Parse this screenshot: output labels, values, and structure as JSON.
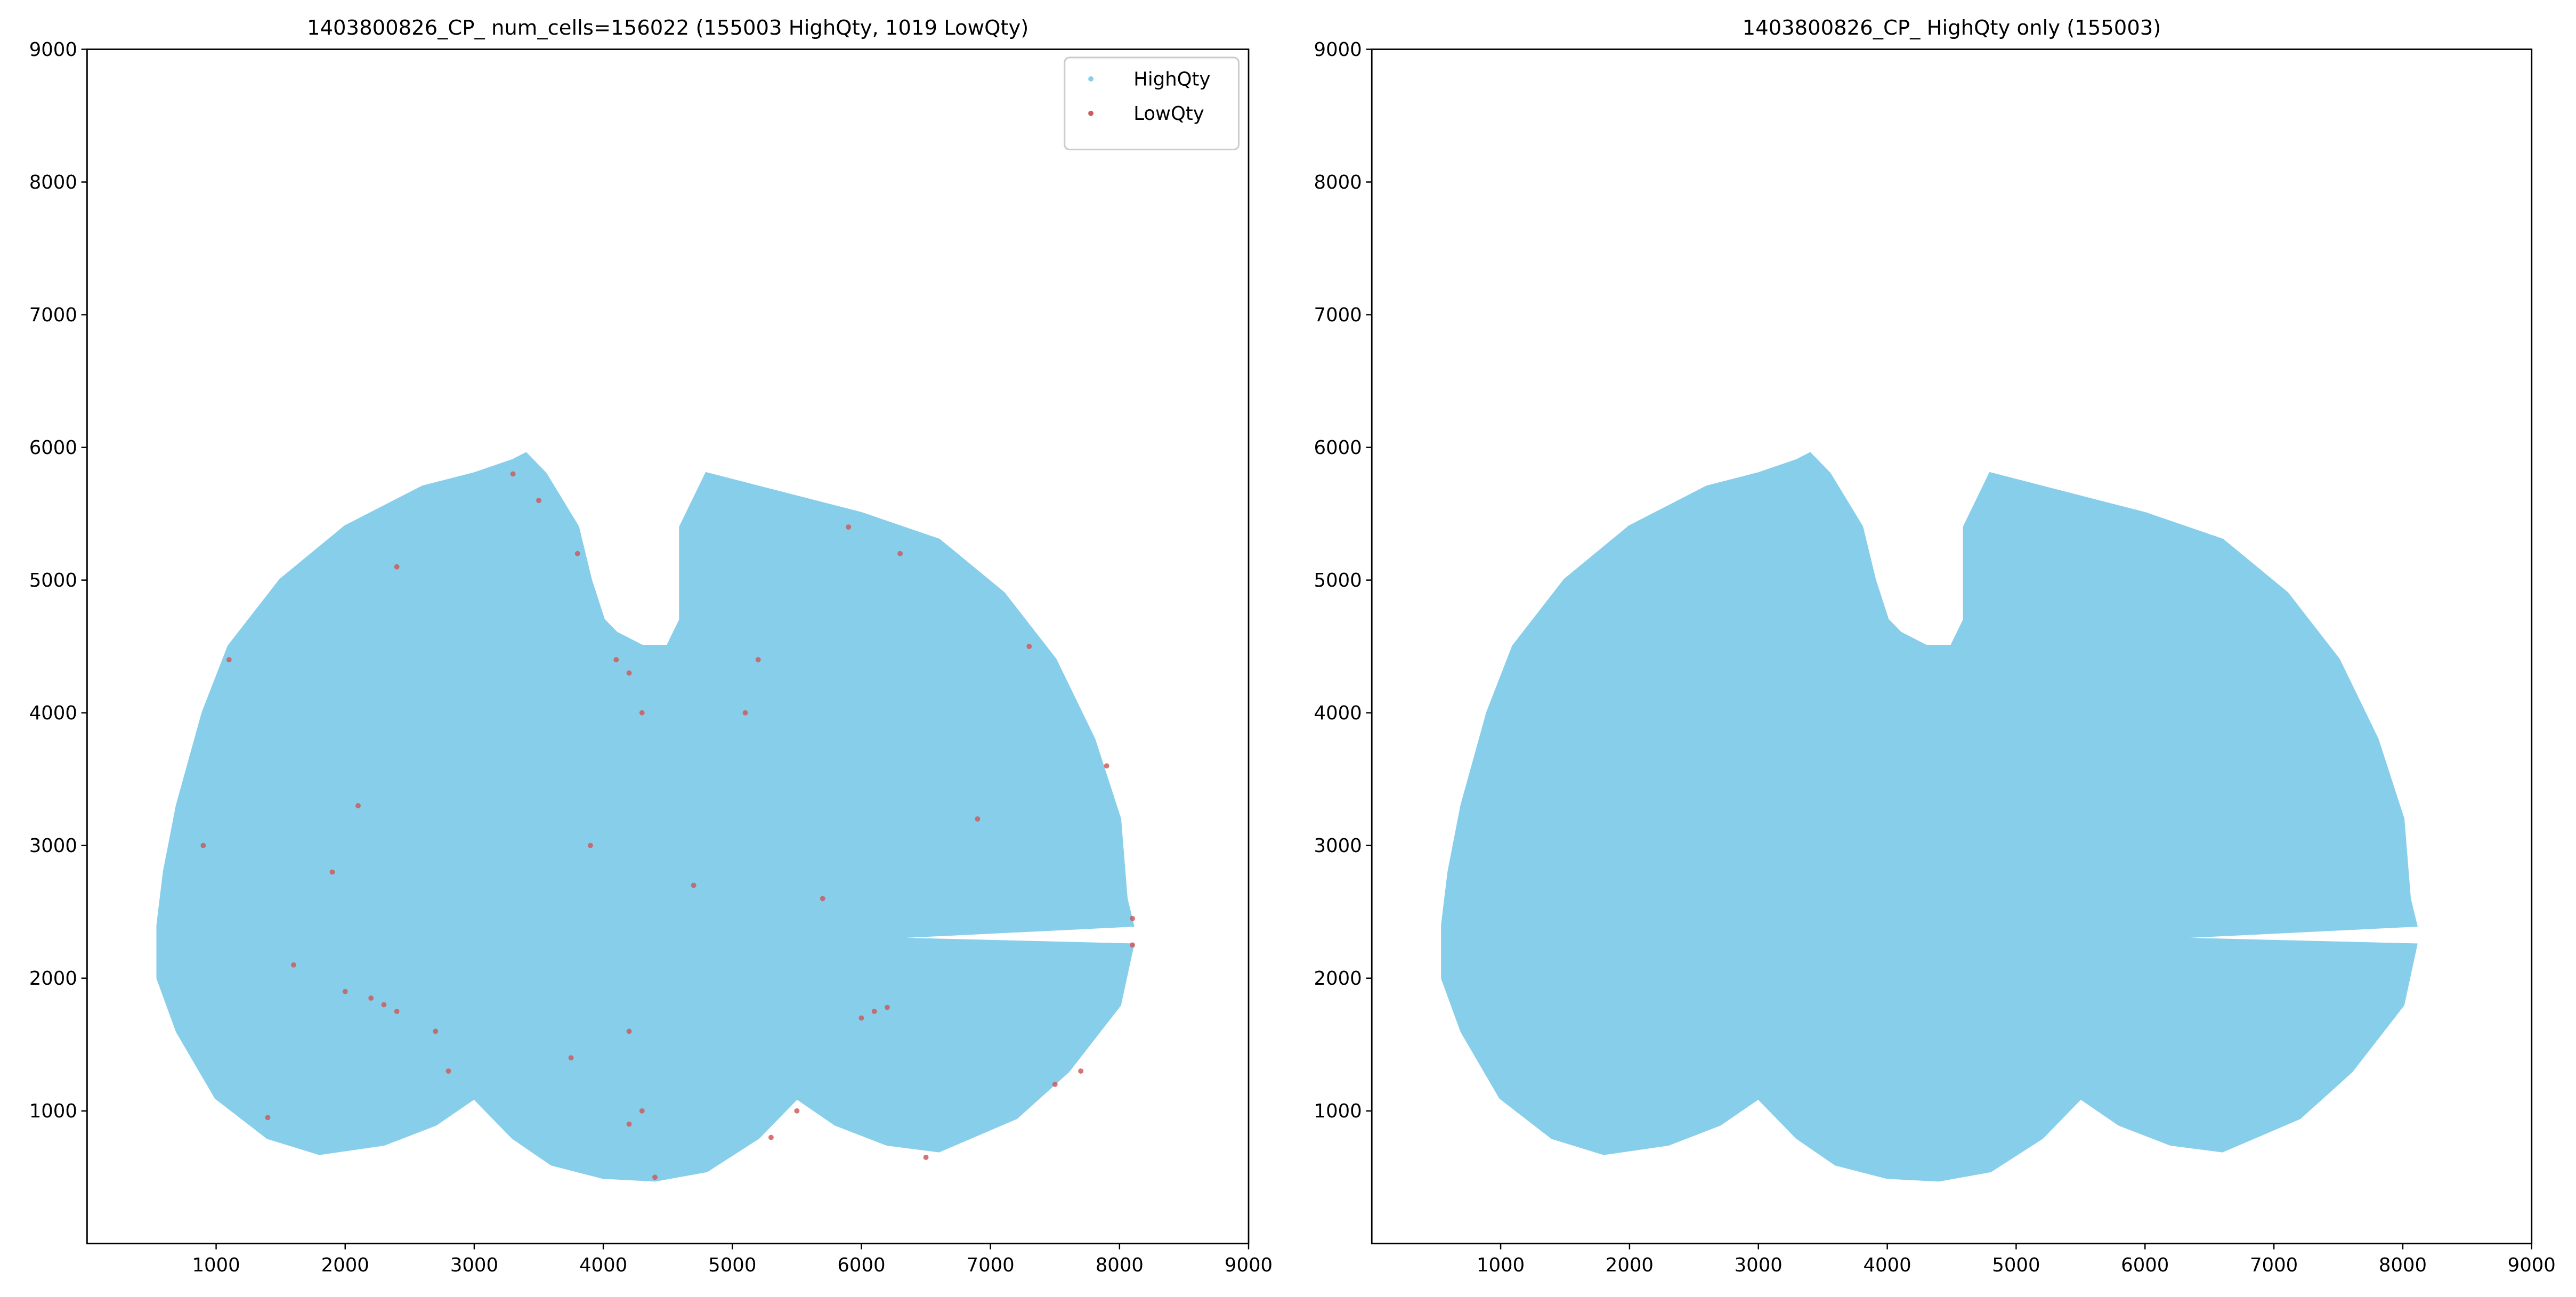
{
  "chart_data": [
    {
      "type": "scatter",
      "title": "1403800826_CP_ num_cells=156022 (155003 HighQty, 1019 LowQty)",
      "xlim": [
        0,
        9000
      ],
      "ylim": [
        0,
        9000
      ],
      "xticks": [
        1000,
        2000,
        3000,
        4000,
        5000,
        6000,
        7000,
        8000,
        9000
      ],
      "yticks": [
        1000,
        2000,
        3000,
        4000,
        5000,
        6000,
        7000,
        8000,
        9000
      ],
      "legend": "upper right",
      "series": [
        {
          "name": "HighQty",
          "color": "#87ceeb",
          "style": "region",
          "x": [
            550,
            600,
            700,
            900,
            1100,
            1500,
            2000,
            2600,
            3000,
            3300,
            3400,
            3550,
            3800,
            3900,
            4000,
            4100,
            4300,
            4500,
            4600,
            4600,
            4800,
            5200,
            6000,
            6600,
            7100,
            7500,
            7800,
            8000,
            8050,
            8100,
            6000,
            8100,
            8000,
            7600,
            7200,
            6600,
            6200,
            5800,
            5500,
            5200,
            4800,
            4400,
            4000,
            3600,
            3300,
            3000,
            2700,
            2300,
            1800,
            1400,
            1000,
            700,
            550
          ],
          "y": [
            2400,
            2800,
            3300,
            4000,
            4500,
            5000,
            5400,
            5700,
            5800,
            5900,
            5950,
            5800,
            5400,
            5000,
            4700,
            4600,
            4500,
            4500,
            4700,
            5400,
            5800,
            5700,
            5500,
            5300,
            4900,
            4400,
            3800,
            3200,
            2600,
            2400,
            2300,
            2250,
            1800,
            1300,
            950,
            700,
            750,
            900,
            1100,
            800,
            550,
            480,
            500,
            600,
            800,
            1100,
            900,
            750,
            680,
            800,
            1100,
            1600,
            2000
          ]
        },
        {
          "name": "LowQty",
          "color": "#cd5c5c",
          "style": "points",
          "x": [
            2300,
            2400,
            2200,
            6100,
            6000,
            6200,
            8100,
            8100,
            3750,
            4300,
            4200,
            4200,
            7500,
            7700,
            3300,
            3500,
            3800,
            4100,
            4200,
            1100,
            900,
            1900,
            2000,
            2700,
            2800,
            5500,
            5300,
            6500,
            4400,
            1400,
            6900,
            7900,
            7300,
            5900,
            6300,
            5100,
            3900,
            4700,
            5700,
            5200,
            2100,
            1600,
            2400,
            4300
          ],
          "y": [
            1800,
            1750,
            1850,
            1750,
            1700,
            1780,
            2450,
            2250,
            1400,
            1000,
            900,
            1600,
            1200,
            1300,
            5800,
            5600,
            5200,
            4400,
            4300,
            4400,
            3000,
            2800,
            1900,
            1600,
            1300,
            1000,
            800,
            650,
            500,
            950,
            3200,
            3600,
            4500,
            5400,
            5200,
            4000,
            3000,
            2700,
            2600,
            4400,
            3300,
            2100,
            5100,
            4000
          ]
        }
      ]
    },
    {
      "type": "scatter",
      "title": "1403800826_CP_ HighQty only (155003)",
      "xlim": [
        0,
        9000
      ],
      "ylim": [
        0,
        9000
      ],
      "xticks": [
        1000,
        2000,
        3000,
        4000,
        5000,
        6000,
        7000,
        8000,
        9000
      ],
      "yticks": [
        1000,
        2000,
        3000,
        4000,
        5000,
        6000,
        7000,
        8000,
        9000
      ],
      "series": [
        {
          "name": "HighQty",
          "color": "#87ceeb",
          "style": "region",
          "x": [
            550,
            600,
            700,
            900,
            1100,
            1500,
            2000,
            2600,
            3000,
            3300,
            3400,
            3550,
            3800,
            3900,
            4000,
            4100,
            4300,
            4500,
            4600,
            4600,
            4800,
            5200,
            6000,
            6600,
            7100,
            7500,
            7800,
            8000,
            8050,
            8100,
            6000,
            8100,
            8000,
            7600,
            7200,
            6600,
            6200,
            5800,
            5500,
            5200,
            4800,
            4400,
            4000,
            3600,
            3300,
            3000,
            2700,
            2300,
            1800,
            1400,
            1000,
            700,
            550
          ],
          "y": [
            2400,
            2800,
            3300,
            4000,
            4500,
            5000,
            5400,
            5700,
            5800,
            5900,
            5950,
            5800,
            5400,
            5000,
            4700,
            4600,
            4500,
            4500,
            4700,
            5400,
            5800,
            5700,
            5500,
            5300,
            4900,
            4400,
            3800,
            3200,
            2600,
            2400,
            2300,
            2250,
            1800,
            1300,
            950,
            700,
            750,
            900,
            1100,
            800,
            550,
            480,
            500,
            600,
            800,
            1100,
            900,
            750,
            680,
            800,
            1100,
            1600,
            2000
          ]
        }
      ]
    }
  ]
}
